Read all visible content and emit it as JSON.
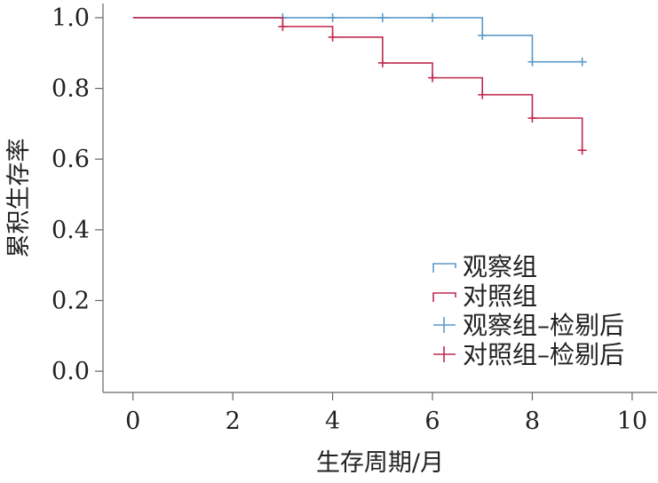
{
  "chart_data": {
    "type": "line",
    "subtype": "kaplan-meier-step",
    "xlabel": "生存周期/月",
    "ylabel": "累积生存率",
    "xlim": [
      -0.6,
      10.5
    ],
    "ylim": [
      -0.06,
      1.04
    ],
    "xticks": [
      "0",
      "2",
      "4",
      "6",
      "8",
      "10"
    ],
    "yticks": [
      "0.0",
      "0.2",
      "0.4",
      "0.6",
      "0.8",
      "1.0"
    ],
    "grid": false,
    "legend_position": "bottom-right",
    "legend": [
      {
        "label": "观察组",
        "kind": "step",
        "series": "observation"
      },
      {
        "label": "对照组",
        "kind": "step",
        "series": "control"
      },
      {
        "label": "观察组–检剔后",
        "kind": "censor",
        "series": "observation"
      },
      {
        "label": "对照组–检剔后",
        "kind": "censor",
        "series": "control"
      }
    ],
    "series": [
      {
        "name": "观察组",
        "key": "observation",
        "color": "#5b9ac9",
        "steps": [
          [
            0,
            1.0
          ],
          [
            7,
            0.95
          ],
          [
            8,
            0.875
          ],
          [
            9,
            0.875
          ]
        ],
        "censored": [
          [
            3,
            1.0
          ],
          [
            4,
            1.0
          ],
          [
            5,
            1.0
          ],
          [
            6,
            1.0
          ],
          [
            7,
            0.95
          ],
          [
            8,
            0.875
          ],
          [
            9,
            0.875
          ]
        ]
      },
      {
        "name": "对照组",
        "key": "control",
        "color": "#c0294f",
        "steps": [
          [
            0,
            1.0
          ],
          [
            3,
            0.975
          ],
          [
            4,
            0.945
          ],
          [
            5,
            0.872
          ],
          [
            6,
            0.83
          ],
          [
            7,
            0.782
          ],
          [
            8,
            0.716
          ],
          [
            9,
            0.625
          ]
        ],
        "censored": [
          [
            3,
            0.975
          ],
          [
            4,
            0.945
          ],
          [
            5,
            0.872
          ],
          [
            6,
            0.83
          ],
          [
            7,
            0.782
          ],
          [
            8,
            0.716
          ],
          [
            9,
            0.625
          ]
        ]
      }
    ]
  }
}
